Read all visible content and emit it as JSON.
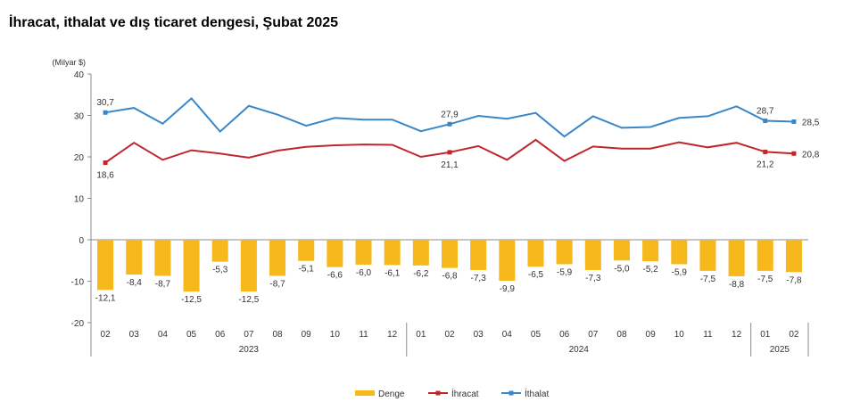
{
  "title": "İhracat, ithalat ve dış ticaret dengesi, Şubat 2025",
  "chart_data": {
    "type": "bar+line",
    "title": "İhracat, ithalat ve dış ticaret dengesi, Şubat 2025",
    "ylabel": "(Milyar $)",
    "ylim": [
      -20,
      40
    ],
    "yticks": [
      -20,
      -10,
      0,
      10,
      20,
      30,
      40
    ],
    "categories": [
      "02",
      "03",
      "04",
      "05",
      "06",
      "07",
      "08",
      "09",
      "10",
      "11",
      "12",
      "01",
      "02",
      "03",
      "04",
      "05",
      "06",
      "07",
      "08",
      "09",
      "10",
      "11",
      "12",
      "01",
      "02"
    ],
    "year_groups": [
      {
        "label": "2023",
        "start": 0,
        "end": 10
      },
      {
        "label": "2024",
        "start": 11,
        "end": 22
      },
      {
        "label": "2025",
        "start": 23,
        "end": 24
      }
    ],
    "series": [
      {
        "name": "Denge",
        "type": "bar",
        "color": "#F6B81A",
        "values": [
          -12.1,
          -8.4,
          -8.7,
          -12.5,
          -5.3,
          -12.5,
          -8.7,
          -5.1,
          -6.6,
          -6.0,
          -6.1,
          -6.2,
          -6.8,
          -7.3,
          -9.9,
          -6.5,
          -5.9,
          -7.3,
          -5.0,
          -5.2,
          -5.9,
          -7.5,
          -8.8,
          -7.5,
          -7.8
        ],
        "labels": [
          "-12,1",
          "-8,4",
          "-8,7",
          "-12,5",
          "-5,3",
          "-12,5",
          "-8,7",
          "-5,1",
          "-6,6",
          "-6,0",
          "-6,1",
          "-6,2",
          "-6,8",
          "-7,3",
          "-9,9",
          "-6,5",
          "-5,9",
          "-7,3",
          "-5,0",
          "-5,2",
          "-5,9",
          "-7,5",
          "-8,8",
          "-7,5",
          "-7,8"
        ]
      },
      {
        "name": "İhracat",
        "type": "line",
        "color": "#C0272D",
        "values": [
          18.6,
          23.4,
          19.3,
          21.6,
          20.8,
          19.8,
          21.5,
          22.4,
          22.8,
          23.0,
          22.9,
          20.0,
          21.1,
          22.6,
          19.3,
          24.1,
          19.0,
          22.5,
          22.0,
          22.0,
          23.5,
          22.3,
          23.4,
          21.2,
          20.8
        ],
        "labels": [
          {
            "i": 0,
            "text": "18,6",
            "pos": "below"
          },
          {
            "i": 12,
            "text": "21,1",
            "pos": "below"
          },
          {
            "i": 23,
            "text": "21,2",
            "pos": "below"
          },
          {
            "i": 24,
            "text": "20,8",
            "pos": "right"
          }
        ]
      },
      {
        "name": "İthalat",
        "type": "line",
        "color": "#3A87C8",
        "values": [
          30.7,
          31.8,
          28.0,
          34.1,
          26.1,
          32.3,
          30.2,
          27.5,
          29.4,
          29.0,
          29.0,
          26.2,
          27.9,
          29.9,
          29.2,
          30.6,
          24.9,
          29.8,
          27.0,
          27.2,
          29.4,
          29.8,
          32.2,
          28.7,
          28.5
        ],
        "labels": [
          {
            "i": 0,
            "text": "30,7",
            "pos": "above"
          },
          {
            "i": 12,
            "text": "27,9",
            "pos": "above"
          },
          {
            "i": 23,
            "text": "28,7",
            "pos": "above"
          },
          {
            "i": 24,
            "text": "28,5",
            "pos": "right"
          }
        ]
      }
    ],
    "legend": {
      "placement": "bottom",
      "items": [
        "Denge",
        "İhracat",
        "İthalat"
      ]
    },
    "grid": false
  }
}
